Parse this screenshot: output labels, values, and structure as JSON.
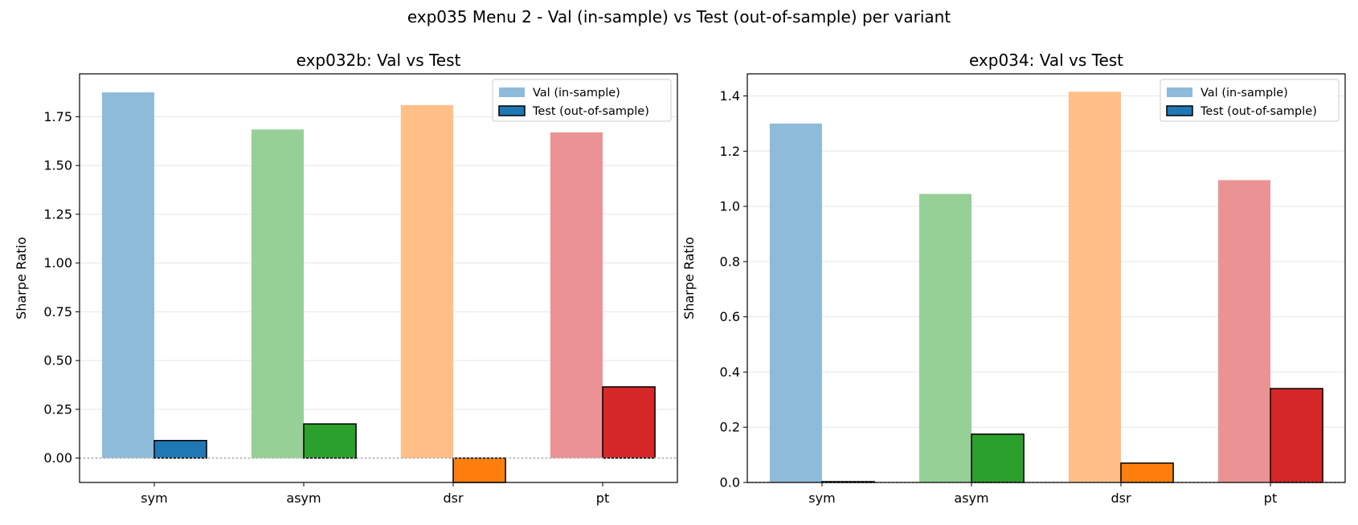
{
  "figure": {
    "suptitle": "exp035 Menu 2 - Val (in-sample) vs Test (out-of-sample) per variant"
  },
  "chart_data": [
    {
      "type": "bar",
      "title": "exp032b: Val vs Test",
      "xlabel": "",
      "ylabel": "Sharpe Ratio",
      "categories": [
        "sym",
        "asym",
        "dsr",
        "pt"
      ],
      "colors": [
        "#1f77b4",
        "#2ca02c",
        "#ff7f0e",
        "#d62728"
      ],
      "ylim": [
        -0.125,
        1.97
      ],
      "yticks": [
        0.0,
        0.25,
        0.5,
        0.75,
        1.0,
        1.25,
        1.5,
        1.75
      ],
      "ytick_labels": [
        "0.00",
        "0.25",
        "0.50",
        "0.75",
        "1.00",
        "1.25",
        "1.50",
        "1.75"
      ],
      "grid": "y",
      "zero_line": "dotted",
      "legend_position": "top-right",
      "series": [
        {
          "name": "Val (in-sample)",
          "style": "faded",
          "values": [
            1.875,
            1.685,
            1.81,
            1.67
          ]
        },
        {
          "name": "Test (out-of-sample)",
          "style": "solid-outlined",
          "values": [
            0.09,
            0.175,
            -0.125,
            0.365
          ]
        }
      ]
    },
    {
      "type": "bar",
      "title": "exp034: Val vs Test",
      "xlabel": "",
      "ylabel": "Sharpe Ratio",
      "categories": [
        "sym",
        "asym",
        "dsr",
        "pt"
      ],
      "colors": [
        "#1f77b4",
        "#2ca02c",
        "#ff7f0e",
        "#d62728"
      ],
      "ylim": [
        0,
        1.48
      ],
      "yticks": [
        0.0,
        0.2,
        0.4,
        0.6,
        0.8,
        1.0,
        1.2,
        1.4
      ],
      "ytick_labels": [
        "0.0",
        "0.2",
        "0.4",
        "0.6",
        "0.8",
        "1.0",
        "1.2",
        "1.4"
      ],
      "grid": "y",
      "zero_line": "dotted",
      "legend_position": "top-right",
      "series": [
        {
          "name": "Val (in-sample)",
          "style": "faded",
          "values": [
            1.3,
            1.045,
            1.415,
            1.095
          ]
        },
        {
          "name": "Test (out-of-sample)",
          "style": "solid-outlined",
          "values": [
            0.003,
            0.175,
            0.07,
            0.34
          ]
        }
      ]
    }
  ]
}
